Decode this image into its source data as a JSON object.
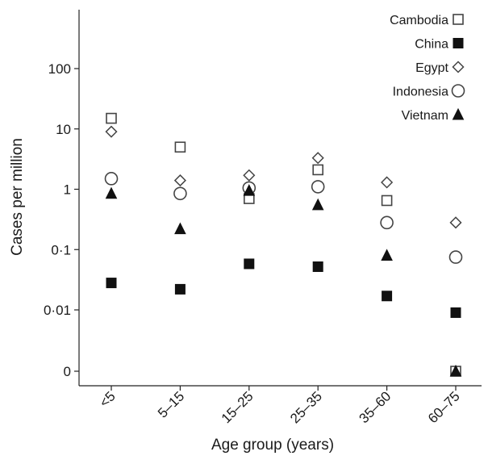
{
  "chart_data": {
    "type": "scatter",
    "xlabel": "Age group (years)",
    "ylabel": "Cases per million",
    "y_scale": "log",
    "grid": false,
    "legend_position": "top-right",
    "categories": [
      "<5",
      "5–15",
      "15–25",
      "25–35",
      "35–60",
      "60–75"
    ],
    "y_ticks": [
      {
        "value": 0,
        "label": "0"
      },
      {
        "value": 0.01,
        "label": "0·01"
      },
      {
        "value": 0.1,
        "label": "0·1"
      },
      {
        "value": 1,
        "label": "1"
      },
      {
        "value": 10,
        "label": "10"
      },
      {
        "value": 100,
        "label": "100"
      }
    ],
    "series": [
      {
        "name": "Cambodia",
        "marker": "open-square",
        "color": "#555555",
        "values": [
          15,
          5,
          0.7,
          2.1,
          0.65,
          0
        ]
      },
      {
        "name": "China",
        "marker": "filled-square",
        "color": "#111111",
        "values": [
          0.028,
          0.022,
          0.058,
          0.052,
          0.017,
          0.009
        ]
      },
      {
        "name": "Egypt",
        "marker": "open-diamond",
        "color": "#555555",
        "values": [
          9,
          1.4,
          1.7,
          3.3,
          1.3,
          0.28
        ]
      },
      {
        "name": "Indonesia",
        "marker": "open-circle",
        "color": "#555555",
        "values": [
          1.5,
          0.85,
          1.05,
          1.1,
          0.28,
          0.075
        ]
      },
      {
        "name": "Vietnam",
        "marker": "filled-triangle",
        "color": "#111111",
        "values": [
          0.85,
          0.22,
          0.95,
          0.55,
          0.08,
          0
        ]
      }
    ]
  }
}
